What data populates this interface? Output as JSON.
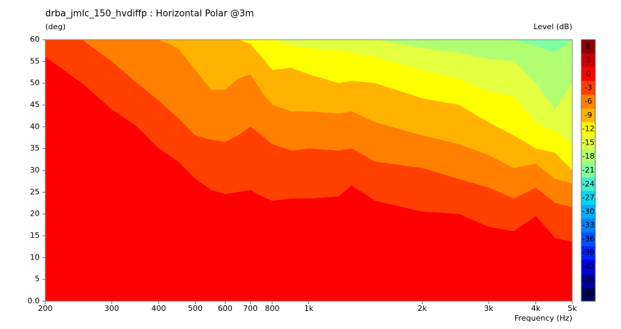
{
  "chart_data": {
    "type": "contour",
    "title": "drba_jmlc_150_hvdiffp : Horizontal Polar @3m",
    "y_label": "(deg)",
    "colorbar_label": "Level  (dB)",
    "x_label": "Frequency  (Hz)",
    "log_x": true,
    "xlim": [
      200,
      5000
    ],
    "ylim": [
      0,
      60
    ],
    "xticks": [
      200,
      300,
      400,
      500,
      600,
      700,
      800,
      {
        "value": 1000,
        "label": "1k"
      },
      {
        "value": 2000,
        "label": "2k"
      },
      {
        "value": 3000,
        "label": "3k"
      },
      {
        "value": 4000,
        "label": "4k"
      },
      {
        "value": 5000,
        "label": "5k"
      }
    ],
    "yticks": [
      {
        "value": 0,
        "label": "0.0"
      },
      5,
      10,
      15,
      20,
      25,
      30,
      35,
      40,
      45,
      50,
      55,
      60
    ],
    "x": [
      200,
      250,
      300,
      350,
      400,
      450,
      500,
      550,
      600,
      650,
      700,
      750,
      800,
      900,
      1000,
      1200,
      1300,
      1500,
      2000,
      2500,
      3000,
      3500,
      4000,
      4500,
      5000
    ],
    "series": [
      {
        "color": "#80ffa0",
        "values": [
          60,
          60,
          60,
          60,
          60,
          60,
          60,
          60,
          60,
          60,
          60,
          60,
          60,
          60,
          60,
          60,
          60,
          60,
          60,
          60,
          60,
          60,
          60,
          60,
          60
        ]
      },
      {
        "color": "#b0ff70",
        "values": [
          60,
          60,
          60,
          60,
          60,
          60,
          60,
          60,
          60,
          60,
          60,
          60,
          60,
          60,
          60,
          60,
          60,
          60,
          60,
          60,
          60,
          60,
          58.5,
          57,
          60
        ]
      },
      {
        "color": "#e2ff40",
        "values": [
          60,
          60,
          60,
          60,
          60,
          60,
          60,
          60,
          60,
          60,
          60,
          60,
          60,
          60,
          60,
          60,
          60,
          60,
          58,
          57,
          55.5,
          55,
          50,
          44,
          50
        ]
      },
      {
        "color": "#ffff00",
        "values": [
          60,
          60,
          60,
          60,
          60,
          60,
          60,
          60,
          60,
          60,
          60,
          60,
          60,
          58.5,
          58,
          57.5,
          57,
          56,
          53,
          51,
          48,
          47,
          41,
          39,
          36
        ]
      },
      {
        "color": "#ffb300",
        "values": [
          60,
          60,
          60,
          60,
          60,
          60,
          60,
          60,
          60,
          60,
          59,
          56,
          53,
          53.5,
          52,
          50,
          50.5,
          50,
          46.5,
          45,
          41,
          38,
          35,
          34,
          30
        ]
      },
      {
        "color": "#ff8000",
        "values": [
          60,
          60,
          60,
          60,
          60,
          58,
          53,
          48.5,
          48.5,
          51,
          52,
          48,
          45,
          43.5,
          43.5,
          43,
          43.5,
          41,
          38,
          36,
          33.5,
          30.5,
          31.5,
          28,
          27
        ]
      },
      {
        "color": "#ff4000",
        "values": [
          60,
          60,
          55,
          50,
          46,
          42,
          38,
          37,
          36.5,
          38,
          40,
          38,
          36,
          34.5,
          35,
          34.5,
          35,
          32,
          30.5,
          28,
          26,
          23.5,
          26,
          22.5,
          21.5
        ]
      },
      {
        "color": "#ff0000",
        "values": [
          56,
          50,
          44,
          40,
          35,
          32,
          28,
          25.5,
          24.5,
          25,
          25.5,
          24,
          23,
          23.5,
          23.5,
          24,
          26.5,
          23,
          20.5,
          20,
          17,
          16,
          19.5,
          14.5,
          13.5
        ]
      }
    ],
    "colorbar": {
      "ticks": [
        6,
        3,
        0,
        -3,
        -6,
        -9,
        -12,
        -15,
        -18,
        -21,
        -24,
        -27,
        -30,
        -33,
        -36,
        -39,
        -42,
        -45,
        -48
      ],
      "colors": [
        "#8b0000",
        "#c80000",
        "#ff0000",
        "#ff4000",
        "#ff8000",
        "#ffb300",
        "#ffff00",
        "#e2ff40",
        "#b0ff70",
        "#80ffa0",
        "#40f0d0",
        "#00d8f0",
        "#00b0ff",
        "#0080ff",
        "#0050ff",
        "#0020ff",
        "#0000e0",
        "#0000a0",
        "#000060"
      ]
    }
  }
}
